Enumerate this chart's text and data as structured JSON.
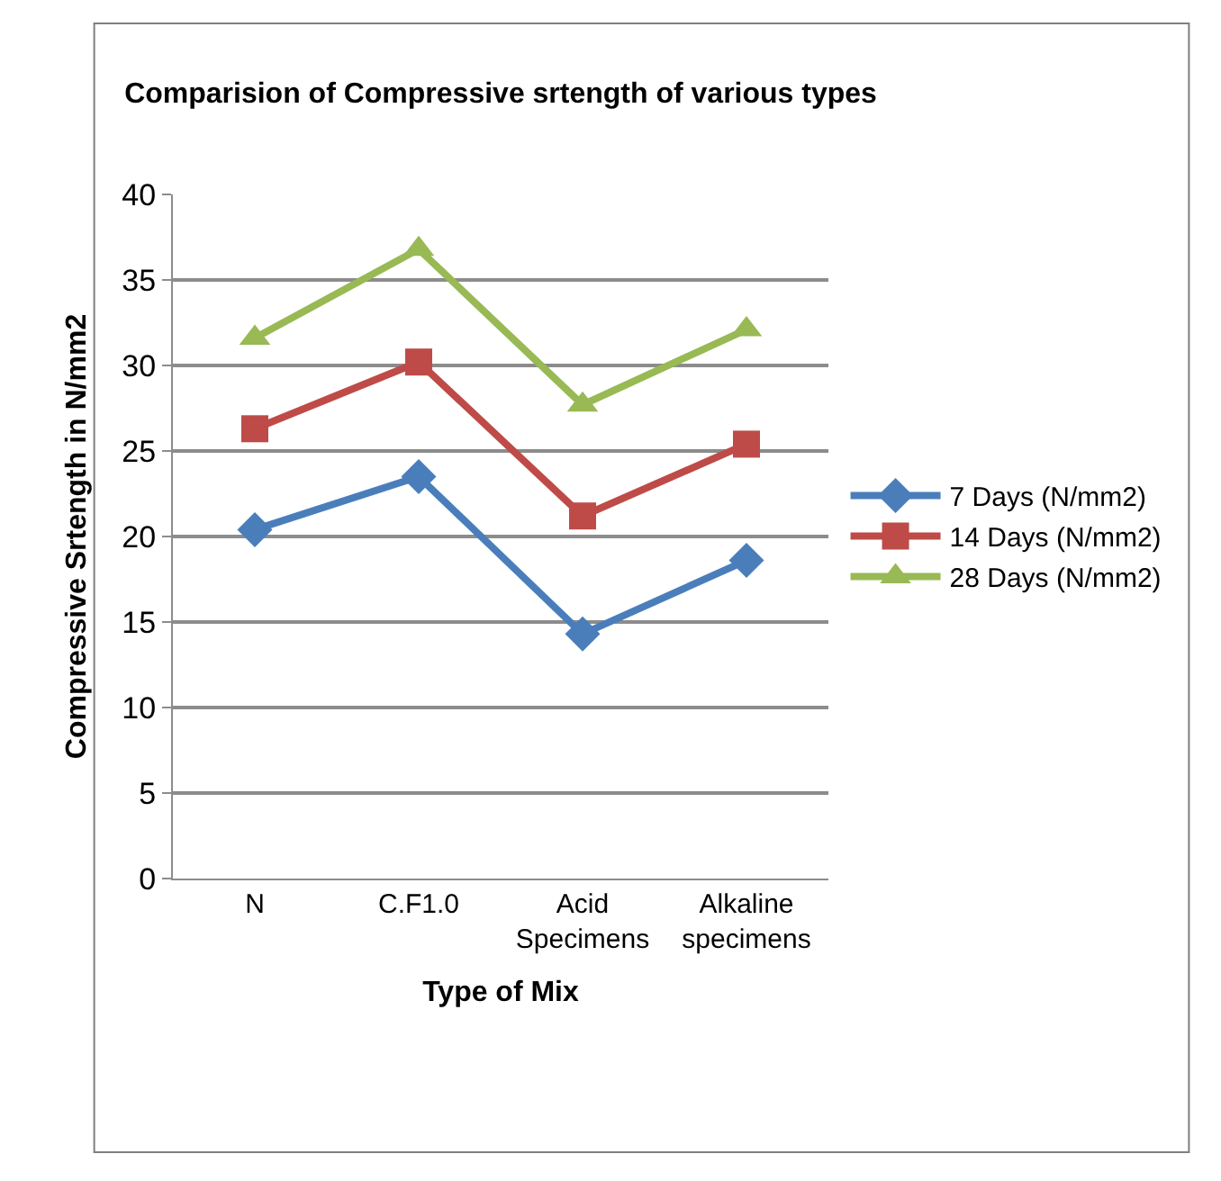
{
  "chart_data": {
    "type": "line",
    "title": "Comparision of Compressive srtength of various types",
    "xlabel": "Type of Mix",
    "ylabel": "Compressive Srtength in N/mm2",
    "categories": [
      "N",
      "C.F1.0",
      "Acid\nSpecimens",
      "Alkaline\nspecimens"
    ],
    "series": [
      {
        "name": "7 Days (N/mm2)",
        "color": "#4a7ebb",
        "marker": "diamond",
        "values": [
          20.4,
          23.5,
          14.3,
          18.6
        ]
      },
      {
        "name": "14 Days (N/mm2)",
        "color": "#be4b48",
        "marker": "square",
        "values": [
          26.3,
          30.2,
          21.2,
          25.4
        ]
      },
      {
        "name": "28 Days (N/mm2)",
        "color": "#98b954",
        "marker": "triangle",
        "values": [
          31.6,
          36.8,
          27.7,
          32.1
        ]
      }
    ],
    "ylim": [
      0,
      40
    ],
    "yticks": [
      0,
      5,
      10,
      15,
      20,
      25,
      30,
      35,
      40
    ],
    "grid": "y",
    "legend": "right"
  }
}
